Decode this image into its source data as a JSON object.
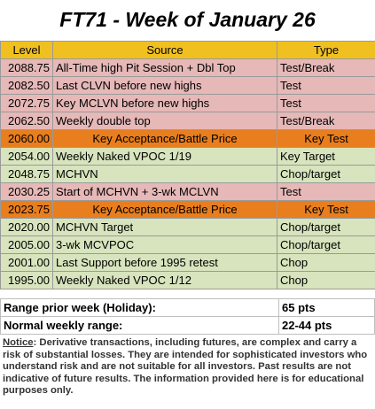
{
  "title": "FT71 - Week of January 26",
  "table": {
    "headers": [
      "Level",
      "Source",
      "Type"
    ],
    "rows": [
      {
        "level": "2088.75",
        "source": "All-Time high Pit Session + Dbl Top",
        "type": "Test/Break",
        "color": "#e6b8b7"
      },
      {
        "level": "2082.50",
        "source": "Last CLVN before new highs",
        "type": "Test",
        "color": "#e6b8b7"
      },
      {
        "level": "2072.75",
        "source": "Key MCLVN before new highs",
        "type": "Test",
        "color": "#e6b8b7"
      },
      {
        "level": "2062.50",
        "source": "Weekly double top",
        "type": "Test/Break",
        "color": "#e6b8b7"
      },
      {
        "level": "2060.00",
        "source": "Key Acceptance/Battle Price",
        "type": "Key Test",
        "color": "#e87e1e"
      },
      {
        "level": "2054.00",
        "source": "Weekly Naked VPOC 1/19",
        "type": "Key Target",
        "color": "#d7e4bd"
      },
      {
        "level": "2048.75",
        "source": "MCHVN",
        "type": "Chop/target",
        "color": "#d7e4bd"
      },
      {
        "level": "2030.25",
        "source": "Start of MCHVN + 3-wk MCLVN",
        "type": "Test",
        "color": "#e6b8b7"
      },
      {
        "level": "2023.75",
        "source": "Key Acceptance/Battle Price",
        "type": "Key Test",
        "color": "#e87e1e"
      },
      {
        "level": "2020.00",
        "source": "MCHVN Target",
        "type": "Chop/target",
        "color": "#d7e4bd"
      },
      {
        "level": "2005.00",
        "source": "3-wk MCVPOC",
        "type": "Chop/target",
        "color": "#d7e4bd"
      },
      {
        "level": "2001.00",
        "source": "Last Support before 1995 retest",
        "type": "Chop",
        "color": "#d7e4bd"
      },
      {
        "level": "1995.00",
        "source": "Weekly Naked VPOC 1/12",
        "type": "Chop",
        "color": "#d7e4bd"
      }
    ]
  },
  "range": {
    "prior_week_label": "Range prior week (Holiday):",
    "prior_week_value": "65 pts",
    "normal_label": "Normal weekly range:",
    "normal_value": "22-44 pts"
  },
  "notice": {
    "label": "Notice",
    "text": ": Derivative transactions, including futures, are complex and carry a risk of substantial losses. They are intended for sophisticated investors who understand risk and are not suitable for all investors. Past results are not indicative of future results. The information provided here is for educational purposes only."
  }
}
